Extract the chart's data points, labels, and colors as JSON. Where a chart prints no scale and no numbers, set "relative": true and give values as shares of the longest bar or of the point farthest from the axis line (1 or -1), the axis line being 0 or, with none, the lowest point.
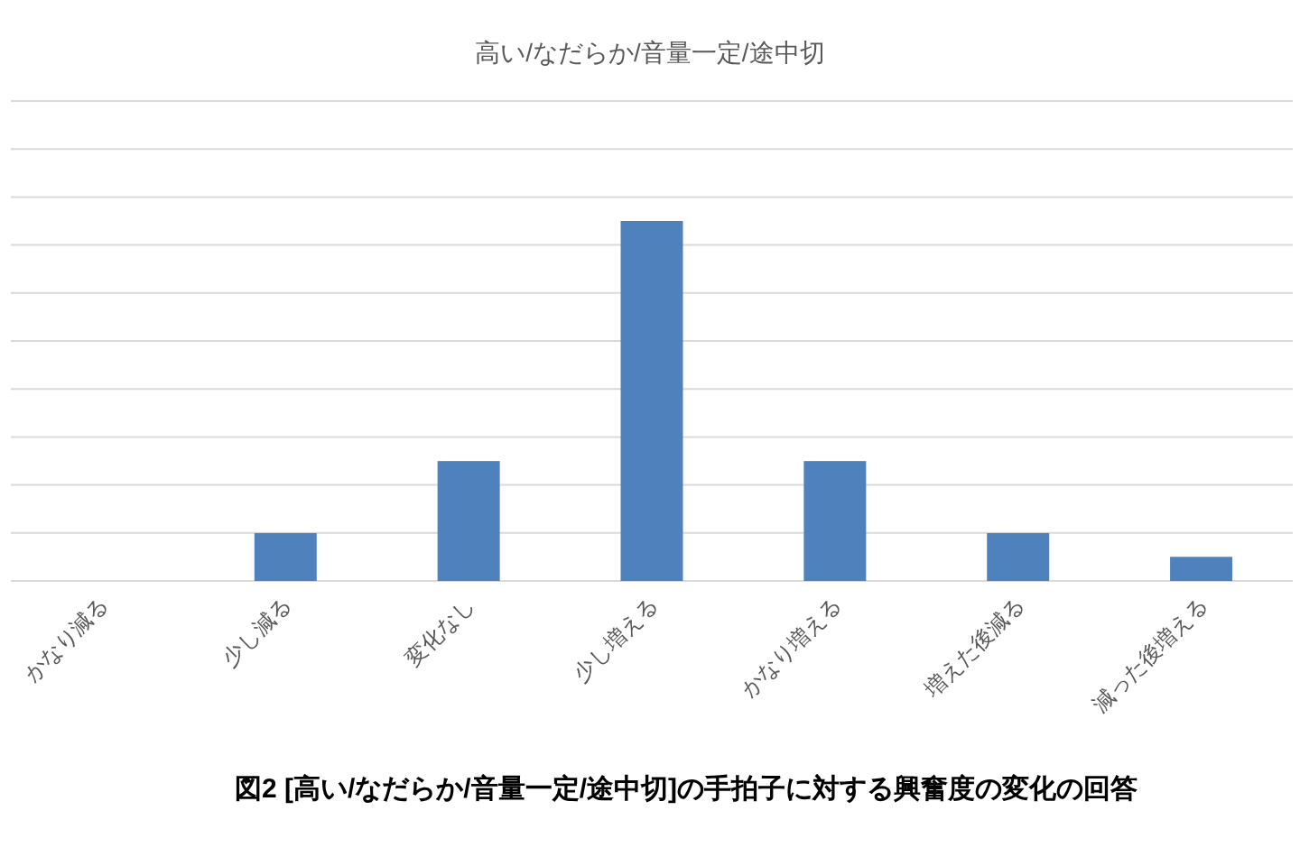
{
  "chart_data": {
    "type": "bar",
    "title": "高い/なだらか/音量一定/途中切",
    "relative": true,
    "grid": "y",
    "color": "#4f81bd",
    "categories": [
      "かなり減る",
      "少し減る",
      "変化なし",
      "少し増える",
      "かなり増える",
      "増えた後減る",
      "減った後増える"
    ],
    "values": [
      0,
      0.133,
      0.333,
      1,
      0.333,
      0.133,
      0.067
    ],
    "annotations": [
      "図2 [高い/なだらか/音量一定/途中切]の手拍子に対する興奮度の変化の回答"
    ]
  }
}
